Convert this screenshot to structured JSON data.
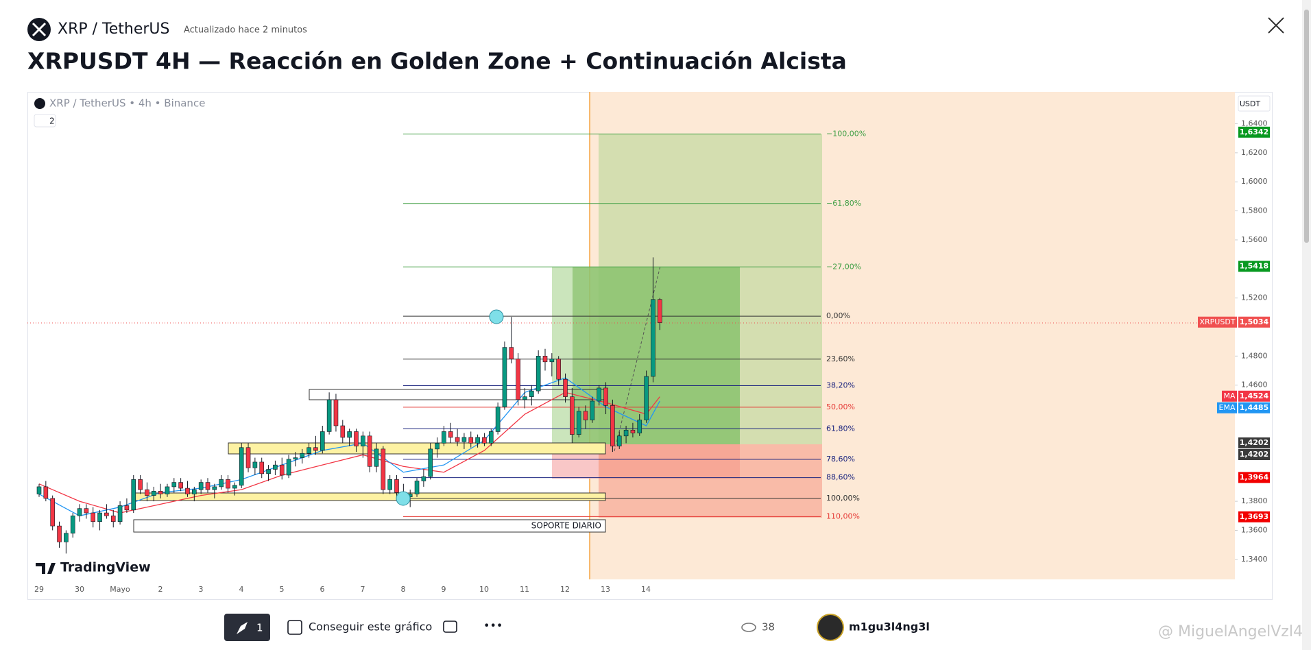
{
  "header": {
    "symbol": "XRP / TetherUS",
    "updated": "Actualizado hace 2 minutos",
    "title": "XRPUSDT 4H — Reacción en Golden Zone + Continuación Alcista"
  },
  "chart": {
    "type": "candlestick",
    "source": "XRP / TetherUS • 4h • Binance",
    "interval_badge": "2",
    "currency": "USDT",
    "logo": "TradingView",
    "annotation": "SOPORTE DIARIO",
    "up_color": "#089981",
    "down_color": "#f23645",
    "xticks": [
      "29",
      "30",
      "Mayo",
      "2",
      "3",
      "4",
      "5",
      "6",
      "7",
      "8",
      "9",
      "10",
      "11",
      "12",
      "13",
      "14"
    ],
    "yticks": [
      {
        "value": 1.64,
        "label": "1,6400"
      },
      {
        "value": 1.62,
        "label": "1,6200"
      },
      {
        "value": 1.6,
        "label": "1,6000"
      },
      {
        "value": 1.58,
        "label": "1,5800"
      },
      {
        "value": 1.56,
        "label": "1,5600"
      },
      {
        "value": 1.52,
        "label": "1,5200"
      },
      {
        "value": 1.48,
        "label": "1,4800"
      },
      {
        "value": 1.46,
        "label": "1,4600"
      },
      {
        "value": 1.38,
        "label": "1,3800"
      },
      {
        "value": 1.36,
        "label": "1,3600"
      },
      {
        "value": 1.34,
        "label": "1,3400"
      }
    ],
    "fib": [
      {
        "label": "−100,00%",
        "price": 1.633,
        "color": "#43a047"
      },
      {
        "label": "−61,80%",
        "price": 1.5851,
        "color": "#43a047"
      },
      {
        "label": "−27,00%",
        "price": 1.5414,
        "color": "#43a047"
      },
      {
        "label": "0,00%",
        "price": 1.5075,
        "color": "#333333"
      },
      {
        "label": "23,60%",
        "price": 1.4779,
        "color": "#333333"
      },
      {
        "label": "38,20%",
        "price": 1.4596,
        "color": "#1a237e"
      },
      {
        "label": "50,00%",
        "price": 1.4448,
        "color": "#e53935"
      },
      {
        "label": "61,80%",
        "price": 1.4299,
        "color": "#1a237e"
      },
      {
        "label": "78,60%",
        "price": 1.4089,
        "color": "#1a237e"
      },
      {
        "label": "88,60%",
        "price": 1.3963,
        "color": "#1a237e"
      },
      {
        "label": "100,00%",
        "price": 1.382,
        "color": "#333333"
      },
      {
        "label": "110,00%",
        "price": 1.3695,
        "color": "#e53935"
      }
    ],
    "price_tags": [
      {
        "price": {
          "value": 1.6342,
          "label": "1,6342"
        },
        "color": "#089920"
      },
      {
        "price": {
          "value": 1.5418,
          "label": "1,5418"
        },
        "color": "#089920"
      },
      {
        "name": "XRPUSDT",
        "price": {
          "value": 1.5034,
          "label": "1,5034"
        },
        "color": "#f05050"
      },
      {
        "name": "MA",
        "price": {
          "value": 1.4524,
          "label": "1,4524"
        },
        "color": "#f23645"
      },
      {
        "name": "EMA",
        "price": {
          "value": 1.4485,
          "label": "1,4485"
        },
        "color": "#2196f3"
      },
      {
        "price": {
          "value": 1.4202,
          "label": "1,4202"
        },
        "color": "#3a3a3a"
      },
      {
        "price": {
          "value": 1.4202,
          "label": "1,4202"
        },
        "color": "#3a3a3a"
      },
      {
        "price": {
          "value": 1.3964,
          "label": "1,3964"
        },
        "color": "#f20000"
      },
      {
        "price": {
          "value": 1.3693,
          "label": "1,3693"
        },
        "color": "#f20000"
      }
    ],
    "ma": {
      "color": "#f23645",
      "index": [
        0,
        6,
        12,
        18,
        24,
        30,
        36,
        42,
        48,
        54,
        60,
        66,
        72,
        78,
        84,
        90,
        92
      ],
      "values": [
        1.392,
        1.38,
        1.372,
        1.378,
        1.384,
        1.388,
        1.398,
        1.405,
        1.412,
        1.404,
        1.4,
        1.415,
        1.44,
        1.455,
        1.448,
        1.44,
        1.452
      ]
    },
    "ema": {
      "color": "#2196f3",
      "index": [
        0,
        6,
        12,
        18,
        24,
        30,
        36,
        42,
        48,
        54,
        60,
        66,
        72,
        78,
        84,
        90,
        92
      ],
      "values": [
        1.385,
        1.37,
        1.376,
        1.386,
        1.389,
        1.395,
        1.405,
        1.415,
        1.42,
        1.4,
        1.405,
        1.422,
        1.455,
        1.465,
        1.445,
        1.432,
        1.449
      ]
    },
    "candles": [
      [
        1.385,
        1.392,
        1.383,
        1.39
      ],
      [
        1.39,
        1.394,
        1.38,
        1.382
      ],
      [
        1.382,
        1.384,
        1.36,
        1.363
      ],
      [
        1.363,
        1.366,
        1.348,
        1.352
      ],
      [
        1.352,
        1.36,
        1.344,
        1.358
      ],
      [
        1.358,
        1.372,
        1.355,
        1.37
      ],
      [
        1.37,
        1.378,
        1.366,
        1.375
      ],
      [
        1.375,
        1.378,
        1.368,
        1.372
      ],
      [
        1.372,
        1.376,
        1.362,
        1.366
      ],
      [
        1.366,
        1.374,
        1.36,
        1.372
      ],
      [
        1.372,
        1.378,
        1.368,
        1.37
      ],
      [
        1.37,
        1.374,
        1.362,
        1.366
      ],
      [
        1.366,
        1.38,
        1.364,
        1.377
      ],
      [
        1.377,
        1.382,
        1.372,
        1.374
      ],
      [
        1.374,
        1.398,
        1.372,
        1.395
      ],
      [
        1.395,
        1.398,
        1.385,
        1.388
      ],
      [
        1.388,
        1.393,
        1.38,
        1.384
      ],
      [
        1.384,
        1.39,
        1.38,
        1.387
      ],
      [
        1.387,
        1.392,
        1.382,
        1.385
      ],
      [
        1.385,
        1.392,
        1.383,
        1.39
      ],
      [
        1.39,
        1.396,
        1.386,
        1.393
      ],
      [
        1.393,
        1.396,
        1.387,
        1.389
      ],
      [
        1.389,
        1.394,
        1.383,
        1.385
      ],
      [
        1.385,
        1.39,
        1.38,
        1.388
      ],
      [
        1.388,
        1.395,
        1.385,
        1.393
      ],
      [
        1.393,
        1.396,
        1.386,
        1.388
      ],
      [
        1.388,
        1.392,
        1.382,
        1.39
      ],
      [
        1.39,
        1.398,
        1.388,
        1.395
      ],
      [
        1.395,
        1.398,
        1.386,
        1.389
      ],
      [
        1.389,
        1.393,
        1.384,
        1.391
      ],
      [
        1.391,
        1.42,
        1.389,
        1.417
      ],
      [
        1.417,
        1.42,
        1.4,
        1.403
      ],
      [
        1.403,
        1.41,
        1.398,
        1.407
      ],
      [
        1.407,
        1.41,
        1.396,
        1.399
      ],
      [
        1.399,
        1.405,
        1.394,
        1.402
      ],
      [
        1.402,
        1.408,
        1.398,
        1.405
      ],
      [
        1.405,
        1.41,
        1.395,
        1.398
      ],
      [
        1.398,
        1.412,
        1.396,
        1.409
      ],
      [
        1.409,
        1.414,
        1.404,
        1.41
      ],
      [
        1.41,
        1.416,
        1.406,
        1.413
      ],
      [
        1.413,
        1.42,
        1.41,
        1.417
      ],
      [
        1.417,
        1.425,
        1.412,
        1.415
      ],
      [
        1.415,
        1.432,
        1.413,
        1.428
      ],
      [
        1.428,
        1.455,
        1.426,
        1.45
      ],
      [
        1.45,
        1.454,
        1.428,
        1.432
      ],
      [
        1.432,
        1.436,
        1.42,
        1.424
      ],
      [
        1.424,
        1.43,
        1.418,
        1.428
      ],
      [
        1.428,
        1.43,
        1.414,
        1.418
      ],
      [
        1.418,
        1.428,
        1.41,
        1.425
      ],
      [
        1.425,
        1.428,
        1.4,
        1.404
      ],
      [
        1.404,
        1.42,
        1.4,
        1.416
      ],
      [
        1.416,
        1.418,
        1.385,
        1.388
      ],
      [
        1.388,
        1.398,
        1.385,
        1.395
      ],
      [
        1.395,
        1.398,
        1.383,
        1.386
      ],
      [
        1.386,
        1.392,
        1.378,
        1.383
      ],
      [
        1.383,
        1.388,
        1.376,
        1.385
      ],
      [
        1.385,
        1.396,
        1.383,
        1.394
      ],
      [
        1.394,
        1.402,
        1.39,
        1.397
      ],
      [
        1.397,
        1.42,
        1.395,
        1.416
      ],
      [
        1.416,
        1.424,
        1.41,
        1.42
      ],
      [
        1.42,
        1.432,
        1.418,
        1.428
      ],
      [
        1.428,
        1.434,
        1.42,
        1.424
      ],
      [
        1.424,
        1.43,
        1.418,
        1.421
      ],
      [
        1.421,
        1.427,
        1.416,
        1.424
      ],
      [
        1.424,
        1.428,
        1.417,
        1.42
      ],
      [
        1.42,
        1.426,
        1.417,
        1.424
      ],
      [
        1.424,
        1.427,
        1.418,
        1.42
      ],
      [
        1.42,
        1.43,
        1.418,
        1.428
      ],
      [
        1.428,
        1.448,
        1.426,
        1.445
      ],
      [
        1.445,
        1.49,
        1.443,
        1.486
      ],
      [
        1.486,
        1.507,
        1.475,
        1.478
      ],
      [
        1.478,
        1.482,
        1.446,
        1.45
      ],
      [
        1.45,
        1.458,
        1.444,
        1.452
      ],
      [
        1.452,
        1.46,
        1.446,
        1.456
      ],
      [
        1.456,
        1.484,
        1.454,
        1.48
      ],
      [
        1.48,
        1.485,
        1.47,
        1.476
      ],
      [
        1.476,
        1.482,
        1.466,
        1.478
      ],
      [
        1.478,
        1.48,
        1.46,
        1.464
      ],
      [
        1.464,
        1.468,
        1.448,
        1.452
      ],
      [
        1.452,
        1.458,
        1.42,
        1.426
      ],
      [
        1.426,
        1.445,
        1.424,
        1.442
      ],
      [
        1.442,
        1.446,
        1.43,
        1.436
      ],
      [
        1.436,
        1.452,
        1.434,
        1.449
      ],
      [
        1.449,
        1.46,
        1.446,
        1.458
      ],
      [
        1.458,
        1.462,
        1.44,
        1.446
      ],
      [
        1.446,
        1.45,
        1.414,
        1.418
      ],
      [
        1.418,
        1.428,
        1.416,
        1.425
      ],
      [
        1.425,
        1.432,
        1.42,
        1.429
      ],
      [
        1.429,
        1.434,
        1.424,
        1.427
      ],
      [
        1.427,
        1.44,
        1.425,
        1.436
      ],
      [
        1.436,
        1.47,
        1.434,
        1.466
      ],
      [
        1.466,
        1.548,
        1.462,
        1.519
      ],
      [
        1.519,
        1.52,
        1.498,
        1.503
      ]
    ]
  },
  "footer": {
    "boosts": "1",
    "get_chart": "Conseguir este gráfico",
    "views": "38",
    "author": "m1gu3l4ng3l",
    "watermark": "@ MiguelAngelVzl4"
  }
}
